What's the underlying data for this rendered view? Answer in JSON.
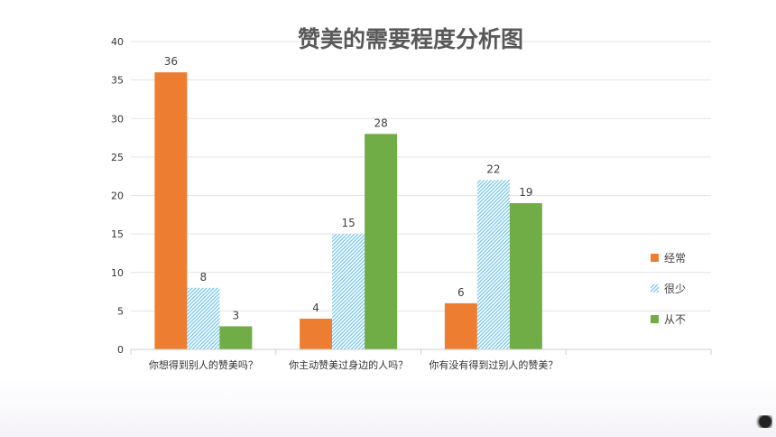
{
  "chart_data": {
    "type": "bar",
    "title": "赞美的需要程度分析图",
    "categories": [
      "你想得到别人的赞美吗？",
      "你主动赞美过身边的人吗？",
      "你有没有得到过别人的赞美？"
    ],
    "series": [
      {
        "name": "经常",
        "values": [
          36,
          4,
          6
        ],
        "color": "#ed7d31",
        "pattern": "solid"
      },
      {
        "name": "很少",
        "values": [
          8,
          15,
          22
        ],
        "color": "#9ed8f2",
        "pattern": "hatched"
      },
      {
        "name": "从不",
        "values": [
          3,
          28,
          19
        ],
        "color": "#70ad47",
        "pattern": "solid"
      }
    ],
    "ylim": [
      0,
      40
    ],
    "yticks": [
      0,
      5,
      10,
      15,
      20,
      25,
      30,
      35,
      40
    ],
    "grid": true,
    "data_labels": true,
    "legend_position": "right",
    "xlabel": "",
    "ylabel": ""
  }
}
